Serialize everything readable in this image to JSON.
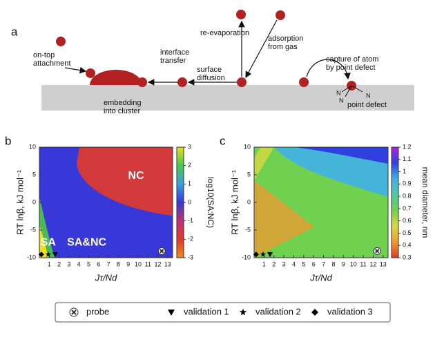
{
  "diagram": {
    "panel_label": "a",
    "labels": [
      {
        "lines": [
          "on-top",
          "attachment"
        ]
      },
      {
        "lines": [
          "embedding",
          "into cluster"
        ]
      },
      {
        "lines": [
          "interface",
          "transfer"
        ]
      },
      {
        "lines": [
          "surface",
          "diffusion"
        ]
      },
      {
        "lines": [
          "re-evaporation"
        ]
      },
      {
        "lines": [
          "adsorption",
          "from gas"
        ]
      },
      {
        "lines": [
          "capture of atom",
          "by point defect"
        ]
      },
      {
        "lines": [
          "point defect"
        ]
      }
    ],
    "defect_symbol": "N"
  },
  "chart_data": [
    {
      "type": "heatmap",
      "panel_label": "b",
      "xlabel": "Jτ/Nd",
      "ylabel": "RT lnβ, kJ mol⁻¹",
      "xlim": [
        0,
        13.5
      ],
      "xticks": [
        1,
        2,
        3,
        4,
        5,
        6,
        7,
        8,
        9,
        10,
        11,
        12,
        13
      ],
      "ylim": [
        -10,
        10
      ],
      "yticks": [
        -10,
        -5,
        0,
        5,
        10
      ],
      "colorbar_label": "log10(SA:NC)",
      "clim": [
        -3,
        3
      ],
      "cticks": [
        -3,
        -2,
        -1,
        0,
        1,
        2,
        3
      ],
      "colormap": [
        "#f08a20",
        "#e23a2a",
        "#c03070",
        "#3838d8",
        "#3a9ee0",
        "#4cc84a",
        "#e8e020"
      ],
      "annotations": [
        {
          "text": "NC",
          "x": 9.8,
          "y": 4.8
        },
        {
          "text": "SA",
          "x": 0.9,
          "y": -7.3
        },
        {
          "text": "SA&NC",
          "x": 4.8,
          "y": -7.3
        }
      ],
      "series": [
        {
          "name": "probe",
          "marker": "cross",
          "x": [
            12.4
          ],
          "values": [
            -8.8
          ]
        },
        {
          "name": "validation 1",
          "marker": "triangle",
          "x": [
            1.6
          ],
          "values": [
            -9.4
          ]
        },
        {
          "name": "validation 2",
          "marker": "star",
          "x": [
            0.9
          ],
          "values": [
            -9.4
          ]
        },
        {
          "name": "validation 3",
          "marker": "diamond",
          "x": [
            0.2
          ],
          "values": [
            -9.4
          ]
        }
      ]
    },
    {
      "type": "heatmap",
      "panel_label": "c",
      "xlabel": "Jτ/Nd",
      "ylabel": "RT lnβ, kJ mol⁻¹",
      "xlim": [
        0,
        13.5
      ],
      "xticks": [
        1,
        2,
        3,
        4,
        5,
        6,
        7,
        8,
        9,
        10,
        11,
        12,
        13
      ],
      "ylim": [
        -10,
        10
      ],
      "yticks": [
        -10,
        -5,
        0,
        5,
        10
      ],
      "colorbar_label": "mean diameter, nm",
      "clim": [
        0.3,
        1.2
      ],
      "cticks": [
        0.3,
        0.4,
        0.5,
        0.6,
        0.7,
        0.8,
        0.9,
        1,
        1.1,
        1.2
      ],
      "colormap": [
        "#e03c20",
        "#f09a30",
        "#d8d840",
        "#70d050",
        "#50c8a0",
        "#40b0e8",
        "#3040e0",
        "#b020e0"
      ],
      "annotations": [],
      "series": [
        {
          "marker": "cross",
          "x": [
            12.4
          ],
          "values": [
            -8.8
          ]
        },
        {
          "marker": "triangle",
          "x": [
            1.6
          ],
          "values": [
            -9.4
          ]
        },
        {
          "marker": "star",
          "x": [
            0.9
          ],
          "values": [
            -9.4
          ]
        },
        {
          "marker": "diamond",
          "x": [
            0.2
          ],
          "values": [
            -9.4
          ]
        }
      ]
    }
  ]
}
